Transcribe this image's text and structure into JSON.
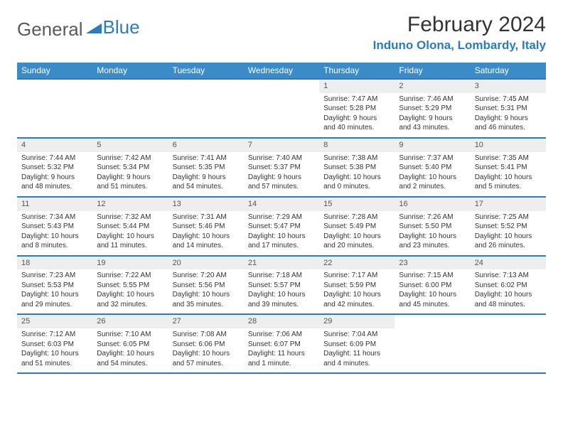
{
  "logo": {
    "text1": "General",
    "text2": "Blue",
    "icon_color": "#2b7bbf"
  },
  "title": "February 2024",
  "location": "Induno Olona, Lombardy, Italy",
  "colors": {
    "header_bg": "#3b8bc9",
    "border": "#2b7bbf",
    "daynum_bg": "#eeeeee",
    "text": "#333333"
  },
  "weekdays": [
    "Sunday",
    "Monday",
    "Tuesday",
    "Wednesday",
    "Thursday",
    "Friday",
    "Saturday"
  ],
  "weeks": [
    [
      null,
      null,
      null,
      null,
      {
        "n": "1",
        "sr": "Sunrise: 7:47 AM",
        "ss": "Sunset: 5:28 PM",
        "d1": "Daylight: 9 hours",
        "d2": "and 40 minutes."
      },
      {
        "n": "2",
        "sr": "Sunrise: 7:46 AM",
        "ss": "Sunset: 5:29 PM",
        "d1": "Daylight: 9 hours",
        "d2": "and 43 minutes."
      },
      {
        "n": "3",
        "sr": "Sunrise: 7:45 AM",
        "ss": "Sunset: 5:31 PM",
        "d1": "Daylight: 9 hours",
        "d2": "and 46 minutes."
      }
    ],
    [
      {
        "n": "4",
        "sr": "Sunrise: 7:44 AM",
        "ss": "Sunset: 5:32 PM",
        "d1": "Daylight: 9 hours",
        "d2": "and 48 minutes."
      },
      {
        "n": "5",
        "sr": "Sunrise: 7:42 AM",
        "ss": "Sunset: 5:34 PM",
        "d1": "Daylight: 9 hours",
        "d2": "and 51 minutes."
      },
      {
        "n": "6",
        "sr": "Sunrise: 7:41 AM",
        "ss": "Sunset: 5:35 PM",
        "d1": "Daylight: 9 hours",
        "d2": "and 54 minutes."
      },
      {
        "n": "7",
        "sr": "Sunrise: 7:40 AM",
        "ss": "Sunset: 5:37 PM",
        "d1": "Daylight: 9 hours",
        "d2": "and 57 minutes."
      },
      {
        "n": "8",
        "sr": "Sunrise: 7:38 AM",
        "ss": "Sunset: 5:38 PM",
        "d1": "Daylight: 10 hours",
        "d2": "and 0 minutes."
      },
      {
        "n": "9",
        "sr": "Sunrise: 7:37 AM",
        "ss": "Sunset: 5:40 PM",
        "d1": "Daylight: 10 hours",
        "d2": "and 2 minutes."
      },
      {
        "n": "10",
        "sr": "Sunrise: 7:35 AM",
        "ss": "Sunset: 5:41 PM",
        "d1": "Daylight: 10 hours",
        "d2": "and 5 minutes."
      }
    ],
    [
      {
        "n": "11",
        "sr": "Sunrise: 7:34 AM",
        "ss": "Sunset: 5:43 PM",
        "d1": "Daylight: 10 hours",
        "d2": "and 8 minutes."
      },
      {
        "n": "12",
        "sr": "Sunrise: 7:32 AM",
        "ss": "Sunset: 5:44 PM",
        "d1": "Daylight: 10 hours",
        "d2": "and 11 minutes."
      },
      {
        "n": "13",
        "sr": "Sunrise: 7:31 AM",
        "ss": "Sunset: 5:46 PM",
        "d1": "Daylight: 10 hours",
        "d2": "and 14 minutes."
      },
      {
        "n": "14",
        "sr": "Sunrise: 7:29 AM",
        "ss": "Sunset: 5:47 PM",
        "d1": "Daylight: 10 hours",
        "d2": "and 17 minutes."
      },
      {
        "n": "15",
        "sr": "Sunrise: 7:28 AM",
        "ss": "Sunset: 5:49 PM",
        "d1": "Daylight: 10 hours",
        "d2": "and 20 minutes."
      },
      {
        "n": "16",
        "sr": "Sunrise: 7:26 AM",
        "ss": "Sunset: 5:50 PM",
        "d1": "Daylight: 10 hours",
        "d2": "and 23 minutes."
      },
      {
        "n": "17",
        "sr": "Sunrise: 7:25 AM",
        "ss": "Sunset: 5:52 PM",
        "d1": "Daylight: 10 hours",
        "d2": "and 26 minutes."
      }
    ],
    [
      {
        "n": "18",
        "sr": "Sunrise: 7:23 AM",
        "ss": "Sunset: 5:53 PM",
        "d1": "Daylight: 10 hours",
        "d2": "and 29 minutes."
      },
      {
        "n": "19",
        "sr": "Sunrise: 7:22 AM",
        "ss": "Sunset: 5:55 PM",
        "d1": "Daylight: 10 hours",
        "d2": "and 32 minutes."
      },
      {
        "n": "20",
        "sr": "Sunrise: 7:20 AM",
        "ss": "Sunset: 5:56 PM",
        "d1": "Daylight: 10 hours",
        "d2": "and 35 minutes."
      },
      {
        "n": "21",
        "sr": "Sunrise: 7:18 AM",
        "ss": "Sunset: 5:57 PM",
        "d1": "Daylight: 10 hours",
        "d2": "and 39 minutes."
      },
      {
        "n": "22",
        "sr": "Sunrise: 7:17 AM",
        "ss": "Sunset: 5:59 PM",
        "d1": "Daylight: 10 hours",
        "d2": "and 42 minutes."
      },
      {
        "n": "23",
        "sr": "Sunrise: 7:15 AM",
        "ss": "Sunset: 6:00 PM",
        "d1": "Daylight: 10 hours",
        "d2": "and 45 minutes."
      },
      {
        "n": "24",
        "sr": "Sunrise: 7:13 AM",
        "ss": "Sunset: 6:02 PM",
        "d1": "Daylight: 10 hours",
        "d2": "and 48 minutes."
      }
    ],
    [
      {
        "n": "25",
        "sr": "Sunrise: 7:12 AM",
        "ss": "Sunset: 6:03 PM",
        "d1": "Daylight: 10 hours",
        "d2": "and 51 minutes."
      },
      {
        "n": "26",
        "sr": "Sunrise: 7:10 AM",
        "ss": "Sunset: 6:05 PM",
        "d1": "Daylight: 10 hours",
        "d2": "and 54 minutes."
      },
      {
        "n": "27",
        "sr": "Sunrise: 7:08 AM",
        "ss": "Sunset: 6:06 PM",
        "d1": "Daylight: 10 hours",
        "d2": "and 57 minutes."
      },
      {
        "n": "28",
        "sr": "Sunrise: 7:06 AM",
        "ss": "Sunset: 6:07 PM",
        "d1": "Daylight: 11 hours",
        "d2": "and 1 minute."
      },
      {
        "n": "29",
        "sr": "Sunrise: 7:04 AM",
        "ss": "Sunset: 6:09 PM",
        "d1": "Daylight: 11 hours",
        "d2": "and 4 minutes."
      },
      null,
      null
    ]
  ]
}
